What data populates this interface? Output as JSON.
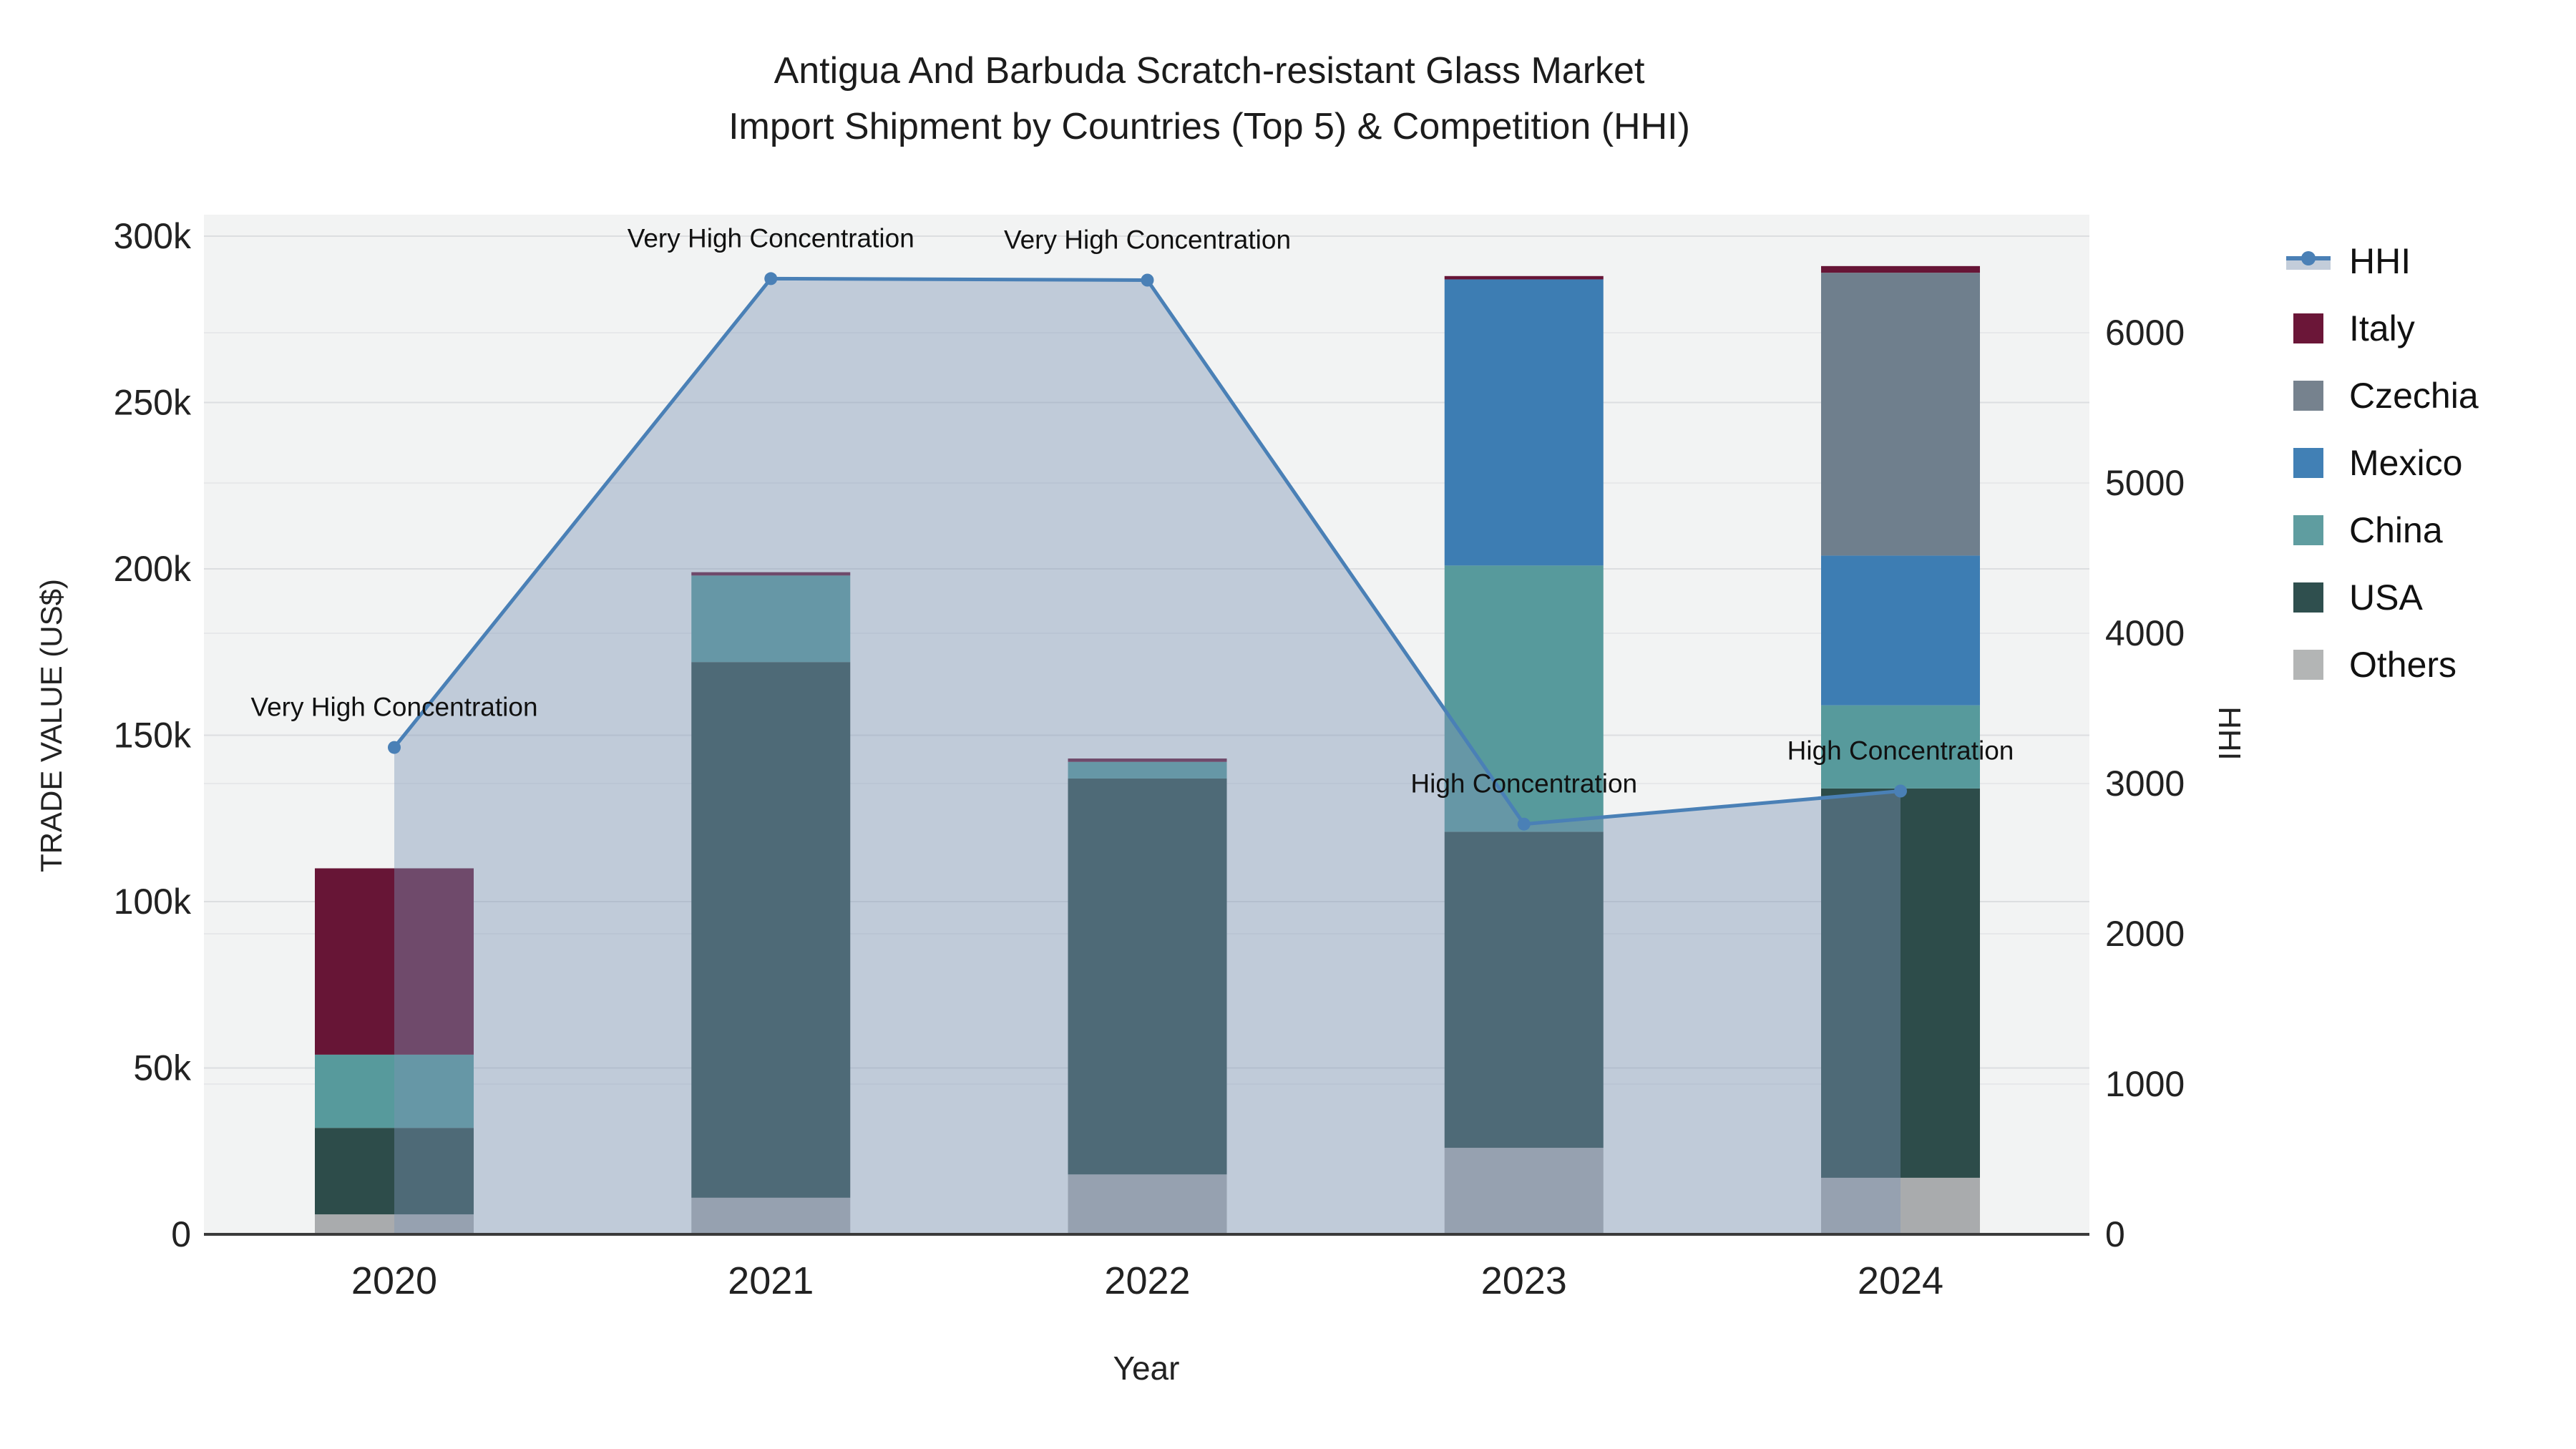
{
  "title": {
    "line1": "Antigua And Barbuda Scratch-resistant Glass Market",
    "line2": "Import Shipment by Countries (Top 5) & Competition (HHI)"
  },
  "axes": {
    "y_left": {
      "title": "TRADE VALUE (US$)",
      "tick_labels": [
        "0",
        "50k",
        "100k",
        "150k",
        "200k",
        "250k",
        "300k"
      ],
      "tick_values_k": [
        0,
        50,
        100,
        150,
        200,
        250,
        300
      ]
    },
    "y_right": {
      "title": "HHI",
      "tick_labels": [
        "0",
        "1000",
        "2000",
        "3000",
        "4000",
        "5000",
        "6000"
      ],
      "tick_values": [
        0,
        1000,
        2000,
        3000,
        4000,
        5000,
        6000
      ]
    },
    "x": {
      "title": "Year"
    }
  },
  "chart_data": {
    "type": "bar",
    "subtype": "stacked-bars-with-line-dual-axis",
    "categories": [
      "2020",
      "2021",
      "2022",
      "2023",
      "2024"
    ],
    "value_unit": "thousand US$",
    "series": [
      {
        "name": "Others",
        "values": [
          6,
          11,
          18,
          26,
          17
        ],
        "color": "#a9abad"
      },
      {
        "name": "USA",
        "values": [
          26,
          161,
          119,
          95,
          117
        ],
        "color": "#2d4c4a"
      },
      {
        "name": "China",
        "values": [
          22,
          26,
          5,
          80,
          25
        ],
        "color": "#579a9c"
      },
      {
        "name": "Mexico",
        "values": [
          0,
          0,
          0,
          86,
          45
        ],
        "color": "#3d7db3"
      },
      {
        "name": "Czechia",
        "values": [
          0,
          0,
          0,
          0,
          85
        ],
        "color": "#6f7f8d"
      },
      {
        "name": "Italy",
        "values": [
          56,
          1,
          1,
          1,
          2
        ],
        "color": "#671536"
      }
    ],
    "line": {
      "name": "HHI",
      "values": [
        3240,
        6360,
        6350,
        2730,
        2950
      ],
      "color": "#4a80b6",
      "area_fill": "rgba(125,148,182,0.42)",
      "axis": "right"
    },
    "annotations": [
      {
        "x": "2020",
        "label": "Very High Concentration"
      },
      {
        "x": "2021",
        "label": "Very High Concentration"
      },
      {
        "x": "2022",
        "label": "Very High Concentration"
      },
      {
        "x": "2023",
        "label": "High Concentration"
      },
      {
        "x": "2024",
        "label": "High Concentration"
      }
    ],
    "ylim_left_k": [
      0,
      300
    ],
    "ylim_right": [
      0,
      6000
    ],
    "grid": true,
    "legend_position": "right",
    "plot_bg": "#f2f3f3",
    "grid_color_left": "#dcdee0",
    "grid_color_right": "#e7e8ea",
    "axisline_color": "#3a3a3a",
    "text_color": "#222222"
  },
  "legend": {
    "items": [
      {
        "label": "HHI",
        "type": "line",
        "color": "#4a80b6",
        "band": "#c3cdda"
      },
      {
        "label": "Italy",
        "type": "square",
        "color": "#6b1638"
      },
      {
        "label": "Czechia",
        "type": "square",
        "color": "#76828e"
      },
      {
        "label": "Mexico",
        "type": "square",
        "color": "#4180b5"
      },
      {
        "label": "China",
        "type": "square",
        "color": "#5f9da0"
      },
      {
        "label": "USA",
        "type": "square",
        "color": "#2f4f4e"
      },
      {
        "label": "Others",
        "type": "square",
        "color": "#b3b5b5"
      }
    ]
  }
}
